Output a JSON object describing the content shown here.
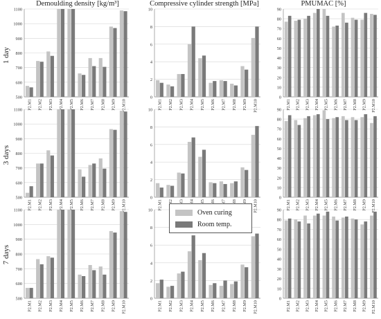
{
  "figure": {
    "column_titles": [
      "Demoulding density [kg/m³]",
      "Compressive cylinder strength [MPa]",
      "PMUMAC [%]"
    ],
    "row_labels": [
      "1 day",
      "3 days",
      "7 days"
    ],
    "categories": [
      "P2.M1",
      "P2.M2",
      "P2.M3",
      "P2.M4",
      "P2.M5",
      "P2.M6",
      "P2.M7",
      "P2.M8",
      "P2.M9",
      "P2.M10"
    ],
    "legend": [
      {
        "label": "Oven curing",
        "color": "#c4c4c4"
      },
      {
        "label": "Room temp.",
        "color": "#7a7a7a"
      }
    ]
  },
  "chart_data": [
    {
      "type": "bar",
      "title": "Demoulding density [kg/m³]",
      "row": "1 day",
      "categories": [
        "P2.M1",
        "P2.M2",
        "P2.M3",
        "P2.M4",
        "P2.M5",
        "P2.M6",
        "P2.M7",
        "P2.M8",
        "P2.M9",
        "P2.M10"
      ],
      "ylim": [
        500,
        1100
      ],
      "yticks": [
        500,
        600,
        700,
        800,
        900,
        1000,
        1100
      ],
      "series": [
        {
          "name": "Oven curing",
          "values": [
            575,
            745,
            810,
            1100,
            1110,
            660,
            765,
            765,
            980,
            1090
          ]
        },
        {
          "name": "Room temp.",
          "values": [
            565,
            740,
            780,
            1105,
            1105,
            650,
            710,
            705,
            970,
            1085
          ]
        }
      ]
    },
    {
      "type": "bar",
      "title": "Compressive cylinder strength [MPa]",
      "row": "1 day",
      "categories": [
        "P2.M1",
        "P2.M2",
        "P2.M3",
        "P2.M4",
        "P2.M5",
        "P2.M6",
        "P2.M7",
        "P2.M8",
        "P2.M9",
        "P2.M10"
      ],
      "ylim": [
        0,
        10
      ],
      "yticks": [
        0,
        2,
        4,
        6,
        8,
        10
      ],
      "series": [
        {
          "name": "Oven curing",
          "values": [
            1.9,
            1.4,
            2.6,
            6.0,
            4.4,
            1.6,
            1.9,
            1.5,
            3.5,
            6.7
          ]
        },
        {
          "name": "Room temp.",
          "values": [
            1.6,
            1.2,
            2.6,
            8.0,
            4.7,
            1.8,
            1.8,
            1.3,
            3.1,
            8.0
          ]
        }
      ]
    },
    {
      "type": "bar",
      "title": "PMUMAC [%]",
      "row": "1 day",
      "categories": [
        "P2.M1",
        "P2.M2",
        "P2.M3",
        "P2.M4",
        "P2.M5",
        "P2.M6",
        "P2.M7",
        "P2.M8",
        "P2.M9",
        "P2.M10"
      ],
      "ylim": [
        0,
        90
      ],
      "yticks": [
        0,
        10,
        20,
        30,
        40,
        50,
        60,
        70,
        80,
        90
      ],
      "series": [
        {
          "name": "Oven curing",
          "values": [
            77,
            78,
            80,
            86,
            91,
            72,
            86,
            81,
            79,
            85
          ]
        },
        {
          "name": "Room temp.",
          "values": [
            83,
            79,
            83,
            90,
            83,
            73,
            76,
            79,
            86,
            84
          ]
        }
      ]
    },
    {
      "type": "bar",
      "title": "Demoulding density [kg/m³]",
      "row": "3 days",
      "categories": [
        "P2.M1",
        "P2.M2",
        "P2.M3",
        "P2.M4",
        "P2.M5",
        "P2.M6",
        "P2.M7",
        "P2.M8",
        "P2.M9",
        "P2.M10"
      ],
      "ylim": [
        500,
        1100
      ],
      "yticks": [
        500,
        600,
        700,
        800,
        900,
        1000,
        1100
      ],
      "series": [
        {
          "name": "Oven curing",
          "values": [
            530,
            730,
            820,
            1110,
            1120,
            690,
            720,
            765,
            965,
            1090
          ]
        },
        {
          "name": "Room temp.",
          "values": [
            575,
            730,
            785,
            1120,
            1120,
            640,
            730,
            695,
            960,
            1085
          ]
        }
      ]
    },
    {
      "type": "bar",
      "title": "Compressive cylinder strength [MPa]",
      "row": "3 days",
      "categories": [
        "P2.M1",
        "P2.M2",
        "P2.M3",
        "P2.M4",
        "P2.M5",
        "P2.M6",
        "P2.M7",
        "P2.M8",
        "P2.M9",
        "P2.M10"
      ],
      "ylim": [
        0,
        10
      ],
      "yticks": [
        0,
        2,
        4,
        6,
        8,
        10
      ],
      "series": [
        {
          "name": "Oven curing",
          "values": [
            1.6,
            1.4,
            2.8,
            6.3,
            4.6,
            1.7,
            1.8,
            1.6,
            3.4,
            7.1
          ]
        },
        {
          "name": "Room temp.",
          "values": [
            1.1,
            1.3,
            2.7,
            6.8,
            5.4,
            1.6,
            1.5,
            1.8,
            3.1,
            8.1
          ]
        }
      ]
    },
    {
      "type": "bar",
      "title": "PMUMAC [%]",
      "row": "3 days",
      "categories": [
        "P2.M1",
        "P2.M2",
        "P2.M3",
        "P2.M4",
        "P2.M5",
        "P2.M6",
        "P2.M7",
        "P2.M8",
        "P2.M9",
        "P2.M10"
      ],
      "ylim": [
        0,
        90
      ],
      "yticks": [
        0,
        10,
        20,
        30,
        40,
        50,
        60,
        70,
        80,
        90
      ],
      "series": [
        {
          "name": "Oven curing",
          "values": [
            78,
            79,
            81,
            84,
            89,
            81,
            83,
            82,
            82,
            76
          ]
        },
        {
          "name": "Room temp.",
          "values": [
            84,
            74,
            83,
            85,
            80,
            82,
            79,
            79,
            85,
            83
          ]
        }
      ]
    },
    {
      "type": "bar",
      "title": "Demoulding density [kg/m³]",
      "row": "7 days",
      "categories": [
        "P2.M1",
        "P2.M2",
        "P2.M3",
        "P2.M4",
        "P2.M5",
        "P2.M6",
        "P2.M7",
        "P2.M8",
        "P2.M9",
        "P2.M10"
      ],
      "ylim": [
        500,
        1100
      ],
      "yticks": [
        500,
        600,
        700,
        800,
        900,
        1000,
        1100
      ],
      "series": [
        {
          "name": "Oven curing",
          "values": [
            570,
            765,
            785,
            1105,
            1120,
            660,
            725,
            715,
            955,
            1090
          ]
        },
        {
          "name": "Room temp.",
          "values": [
            570,
            730,
            775,
            1120,
            1120,
            650,
            690,
            660,
            945,
            1085
          ]
        }
      ]
    },
    {
      "type": "bar",
      "title": "Compressive cylinder strength [MPa]",
      "row": "7 days",
      "categories": [
        "P2.M1",
        "P2.M2",
        "P2.M3",
        "P2.M4",
        "P2.M5",
        "P2.M6",
        "P2.M7",
        "P2.M8",
        "P2.M9",
        "P2.M10"
      ],
      "ylim": [
        0,
        10
      ],
      "yticks": [
        0,
        2,
        4,
        6,
        8,
        10
      ],
      "series": [
        {
          "name": "Oven curing",
          "values": [
            1.7,
            1.3,
            2.8,
            5.3,
            4.3,
            1.5,
            1.4,
            1.6,
            3.8,
            7.0
          ]
        },
        {
          "name": "Room temp.",
          "values": [
            2.1,
            1.4,
            3.0,
            7.1,
            5.1,
            1.7,
            2.0,
            1.9,
            3.5,
            7.3
          ]
        }
      ]
    },
    {
      "type": "bar",
      "title": "PMUMAC [%]",
      "row": "7 days",
      "categories": [
        "P2.M1",
        "P2.M2",
        "P2.M3",
        "P2.M4",
        "P2.M5",
        "P2.M6",
        "P2.M7",
        "P2.M8",
        "P2.M9",
        "P2.M10"
      ],
      "ylim": [
        0,
        90
      ],
      "yticks": [
        0,
        10,
        20,
        30,
        40,
        50,
        60,
        70,
        80,
        90
      ],
      "series": [
        {
          "name": "Oven curing",
          "values": [
            79,
            80,
            84,
            84,
            84,
            83,
            82,
            81,
            75,
            84
          ]
        },
        {
          "name": "Room temp.",
          "values": [
            81,
            78,
            76,
            86,
            88,
            79,
            83,
            80,
            78,
            88
          ]
        }
      ]
    }
  ]
}
